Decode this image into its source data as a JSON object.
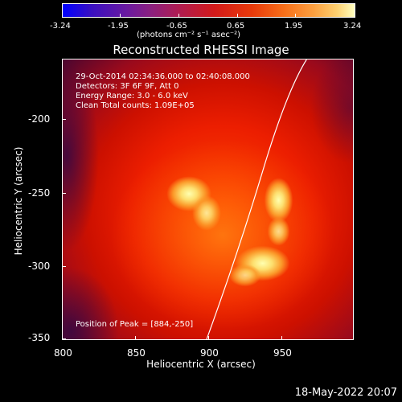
{
  "colorbar": {
    "ticks": [
      "-3.24",
      "-1.95",
      "-0.65",
      "0.65",
      "1.95",
      "3.24"
    ],
    "unit": "(photons cm⁻² s⁻¹ asec⁻²)"
  },
  "image": {
    "title": "Reconstructed RHESSI Image",
    "time_range": "29-Oct-2014 02:34:36.000 to 02:40:08.000",
    "detectors": "Detectors: 3F 6F 9F, Att 0",
    "energy_range": "Energy Range: 3.0 - 6.0 keV",
    "clean_total": "Clean    Total counts: 1.09E+05",
    "peak_position": "Position of Peak = [884,-250]"
  },
  "axes": {
    "xlabel": "Heliocentric X (arcsec)",
    "ylabel": "Heliocentric Y (arcsec)",
    "xticks": [
      "800",
      "850",
      "900",
      "950"
    ],
    "yticks": [
      "-200",
      "-250",
      "-300",
      "-350"
    ]
  },
  "footer": {
    "datestamp": "18-May-2022 20:07"
  },
  "colors": {
    "bright_core": "#ffffb0",
    "hot": "#fcb24a",
    "limb_line": "#ffffff"
  }
}
